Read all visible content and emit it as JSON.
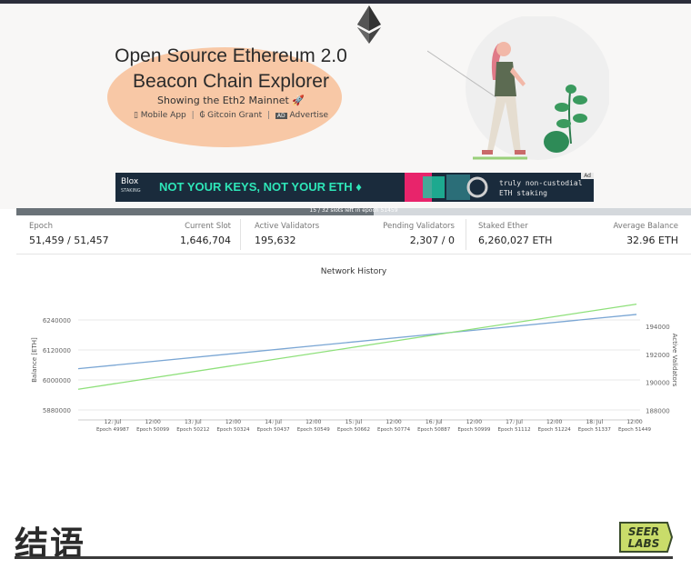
{
  "hero": {
    "title_line1": "Open Source Ethereum 2.0",
    "title_line2": "Beacon Chain Explorer",
    "subtitle": "Showing the Eth2 Mainnet 🚀",
    "links": [
      {
        "icon": "mobile-icon",
        "label": "Mobile App"
      },
      {
        "icon": "gitcoin-icon",
        "label": "Gitcoin Grant"
      },
      {
        "icon": "ad-icon",
        "label": "Advertise"
      }
    ]
  },
  "banner": {
    "brand": "Blox",
    "brand_sub": "STAKING",
    "slogan": "NOT YOUR KEYS, NOT YOUR ETH ♦",
    "note_line1": "truly non-custodial",
    "note_line2": "ETH staking",
    "ad_label": "Ad"
  },
  "epoch_progress": {
    "text": "15 / 32 slots left in epoch 51459",
    "fraction": 0.53,
    "fill_color": "#6a7278"
  },
  "stats": [
    {
      "label": "Epoch",
      "value": "51,459 / 51,457"
    },
    {
      "label": "Current Slot",
      "value": "1,646,704"
    },
    {
      "label": "Active Validators",
      "value": "195,632"
    },
    {
      "label": "Pending Validators",
      "value": "2,307 / 0"
    },
    {
      "label": "Staked Ether",
      "value": "6,260,027 ETH"
    },
    {
      "label": "Average Balance",
      "value": "32.96 ETH"
    }
  ],
  "chart_data": {
    "type": "line",
    "title": "Network History",
    "ylabel": "Balance [ETH]",
    "y2label": "Active Validators",
    "x_ticks": [
      {
        "date": "12. Jul",
        "epoch": "Epoch 49987"
      },
      {
        "date": "12:00",
        "epoch": "Epoch 50099"
      },
      {
        "date": "13. Jul",
        "epoch": "Epoch 50212"
      },
      {
        "date": "12:00",
        "epoch": "Epoch 50324"
      },
      {
        "date": "14. Jul",
        "epoch": "Epoch 50437"
      },
      {
        "date": "12:00",
        "epoch": "Epoch 50549"
      },
      {
        "date": "15. Jul",
        "epoch": "Epoch 50662"
      },
      {
        "date": "12:00",
        "epoch": "Epoch 50774"
      },
      {
        "date": "16. Jul",
        "epoch": "Epoch 50887"
      },
      {
        "date": "12:00",
        "epoch": "Epoch 50999"
      },
      {
        "date": "17. Jul",
        "epoch": "Epoch 51112"
      },
      {
        "date": "12:00",
        "epoch": "Epoch 51224"
      },
      {
        "date": "18. Jul",
        "epoch": "Epoch 51337"
      },
      {
        "date": "12:00",
        "epoch": "Epoch 51449"
      }
    ],
    "y_left": {
      "ticks": [
        5880000,
        6000000,
        6120000,
        6240000
      ],
      "range": [
        5840000,
        6320000
      ]
    },
    "y_right": {
      "ticks": [
        188000,
        190000,
        192000,
        194000
      ],
      "range": [
        187300,
        195900
      ]
    },
    "x_range": [
      49900,
      51470
    ],
    "series": [
      {
        "axis": "left",
        "color": "#7aa6d4",
        "x": [
          49900,
          51460
        ],
        "values": [
          6045000,
          6262000
        ]
      },
      {
        "axis": "right",
        "color": "#8ee07a",
        "x": [
          49900,
          51460
        ],
        "values": [
          189500,
          195600
        ]
      }
    ],
    "grid": true
  },
  "footer": {
    "title": "结语",
    "logo_line1": "SEER",
    "logo_line2": "LABS"
  }
}
